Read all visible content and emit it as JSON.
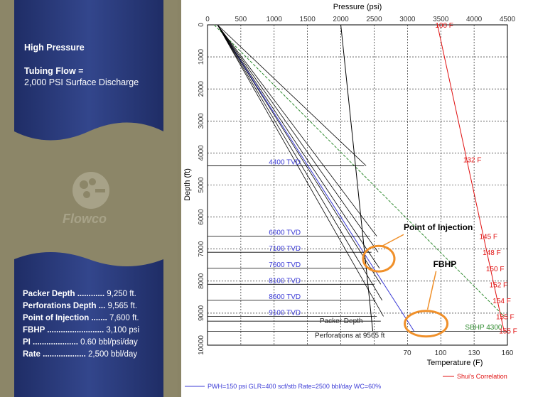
{
  "panel": {
    "title": "High Pressure",
    "tubing_label": "Tubing Flow =",
    "tubing_value": "2,000 PSI Surface Discharge",
    "logo_text": "Flowco",
    "stats": [
      {
        "label": "Packer Depth ............",
        "value": "9,250 ft."
      },
      {
        "label": "Perforations Depth ...",
        "value": "9,565 ft."
      },
      {
        "label": "Point of Injection .......",
        "value": "7,600 ft."
      },
      {
        "label": "FBHP .........................",
        "value": "3,100 psi"
      },
      {
        "label": "PI ....................",
        "value": "0.60 bbl/psi/day"
      },
      {
        "label": "Rate ...................",
        "value": "2,500 bbl/day"
      }
    ]
  },
  "colors": {
    "banner": "#2a3a78",
    "banner_light": "#4a5a9c",
    "blue_line": "#3b3bd6",
    "green_line": "#2e8a2e",
    "red_line": "#e01010",
    "annotation": "#f0902a"
  },
  "chart_data": {
    "type": "line",
    "pressure_axis": {
      "label": "Pressure (psi)",
      "ticks": [
        0,
        500,
        1000,
        1500,
        2000,
        2500,
        3000,
        3500,
        4000,
        4500
      ],
      "range": [
        0,
        4500
      ]
    },
    "depth_axis": {
      "label": "Depth (ft)",
      "ticks": [
        0,
        1000,
        2000,
        3000,
        4000,
        5000,
        6000,
        7000,
        8000,
        9000,
        10000
      ],
      "range": [
        0,
        10000
      ]
    },
    "temperature_axis": {
      "label": "Temperature (F)",
      "ticks": [
        70,
        100,
        130,
        160
      ]
    },
    "temperature_labels": [
      {
        "text": "100 F",
        "depth": 0
      },
      {
        "text": "132 F",
        "depth": 4200
      },
      {
        "text": "145 F",
        "depth": 6600
      },
      {
        "text": "148 F",
        "depth": 7100
      },
      {
        "text": "150 F",
        "depth": 7600
      },
      {
        "text": "152 F",
        "depth": 8100
      },
      {
        "text": "154 F",
        "depth": 8600
      },
      {
        "text": "155 F",
        "depth": 9100
      },
      {
        "text": "155 F",
        "depth": 9550
      }
    ],
    "valve_labels": [
      {
        "text": "4400 TVD",
        "depth": 4400
      },
      {
        "text": "6600 TVD",
        "depth": 6600
      },
      {
        "text": "7100 TVD",
        "depth": 7100
      },
      {
        "text": "7600 TVD",
        "depth": 7600
      },
      {
        "text": "8100 TVD",
        "depth": 8100
      },
      {
        "text": "8600 TVD",
        "depth": 8600
      },
      {
        "text": "9100 TVD",
        "depth": 9100
      }
    ],
    "packer_label": "Packer Depth",
    "perf_label": "Perforations at 9565 ft",
    "sbhp_label": "SBHP 4300",
    "correlation_label": "Shui's Correlation",
    "footer": "PWH=150 psi GLR=400 scf/stb Rate=2500 bbl/day WC=60%",
    "series": [
      {
        "color": "blue",
        "points": [
          [
            150,
            0
          ],
          [
            3100,
            9565
          ]
        ]
      },
      {
        "color": "green",
        "points": [
          [
            100,
            0
          ],
          [
            4450,
            9100
          ]
        ]
      },
      {
        "color": "red",
        "points": [
          [
            3450,
            0
          ],
          [
            4450,
            9565
          ]
        ]
      },
      {
        "color": "black",
        "points": [
          [
            2000,
            0
          ],
          [
            2480,
            9565
          ]
        ]
      }
    ],
    "annotations": [
      {
        "text": "Point of Injection",
        "pressure": 2570,
        "depth": 7300
      },
      {
        "text": "FBHP",
        "pressure": 3280,
        "depth": 9330
      }
    ]
  }
}
